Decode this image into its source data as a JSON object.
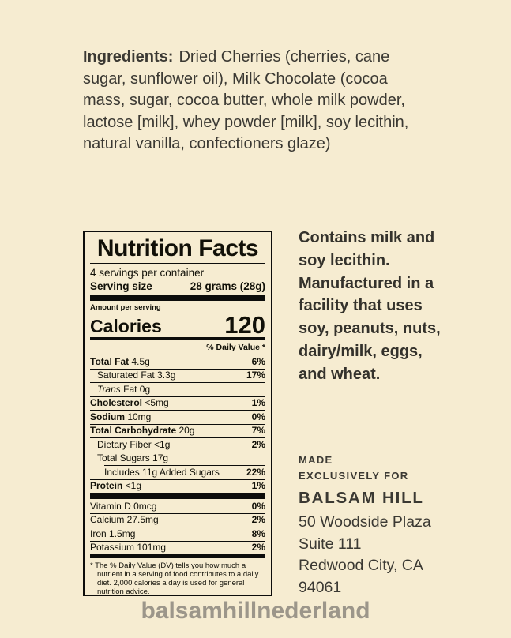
{
  "page": {
    "background": "#f6ecd1",
    "text_color": "#3b3933"
  },
  "ingredients": {
    "label": "Ingredients:",
    "text": "Dried Cherries (cherries, cane sugar, sunflower oil), Milk Chocolate (cocoa mass, sugar, cocoa butter, whole milk powder, lactose [milk], whey powder [milk], soy lecithin, natural vanilla, confectioners glaze)"
  },
  "nutrition_facts": {
    "title": "Nutrition Facts",
    "servings_per_container": "4 servings per container",
    "serving_size_label": "Serving size",
    "serving_size_value": "28 grams (28g)",
    "amount_per_serving": "Amount per serving",
    "calories_label": "Calories",
    "calories_value": "120",
    "daily_value_header": "% Daily Value *",
    "rows": [
      {
        "name": "Total Fat",
        "amount": "4.5g",
        "dv": "6%",
        "bold": true,
        "indent": 0,
        "sep": 0
      },
      {
        "name": "Saturated Fat",
        "amount": "3.3g",
        "dv": "17%",
        "bold": false,
        "indent": 1,
        "sep": 0
      },
      {
        "name": "Trans Fat",
        "amount": "0g",
        "dv": "",
        "bold": false,
        "indent": 1,
        "sep": 0,
        "italic": true
      },
      {
        "name": "Cholesterol",
        "amount": "<5mg",
        "dv": "1%",
        "bold": true,
        "indent": 0,
        "sep": 0
      },
      {
        "name": "Sodium",
        "amount": "10mg",
        "dv": "0%",
        "bold": true,
        "indent": 0,
        "sep": 0
      },
      {
        "name": "Total Carbohydrate",
        "amount": "20g",
        "dv": "7%",
        "bold": true,
        "indent": 0,
        "sep": 0
      },
      {
        "name": "Dietary Fiber",
        "amount": "<1g",
        "dv": "2%",
        "bold": false,
        "indent": 1,
        "sep": 0
      },
      {
        "name": "Total Sugars",
        "amount": "17g",
        "dv": "",
        "bold": false,
        "indent": 1,
        "sep": 1
      },
      {
        "name": "Includes 11g Added Sugars",
        "amount": "",
        "dv": "22%",
        "bold": false,
        "indent": 2,
        "sep": 2
      },
      {
        "name": "Protein",
        "amount": "<1g",
        "dv": "1%",
        "bold": true,
        "indent": 0,
        "sep": 0
      }
    ],
    "vitamins": [
      {
        "name": "Vitamin D",
        "amount": "0mcg",
        "dv": "0%"
      },
      {
        "name": "Calcium",
        "amount": "27.5mg",
        "dv": "2%"
      },
      {
        "name": "Iron",
        "amount": "1.5mg",
        "dv": "8%"
      },
      {
        "name": "Potassium",
        "amount": "101mg",
        "dv": "2%"
      }
    ],
    "footnote": "* The % Daily Value (DV) tells you how much a nutrient in a serving of food contributes to a daily diet. 2,000 calories a day is used for general nutrition advice."
  },
  "allergen_info": {
    "text": "Contains milk and soy lecithin. Manufactured in a facility that uses soy, peanuts, nuts, dairy/milk, eggs, and wheat."
  },
  "manufacturer": {
    "made_line1": "MADE",
    "made_line2": "EXCLUSIVELY FOR",
    "brand": "BALSAM HILL",
    "address_lines": [
      "50 Woodside Plaza",
      "Suite 111",
      "Redwood City, CA",
      "94061"
    ]
  },
  "watermark": {
    "text": "balsamhillnederland",
    "color": "#9c968a"
  }
}
